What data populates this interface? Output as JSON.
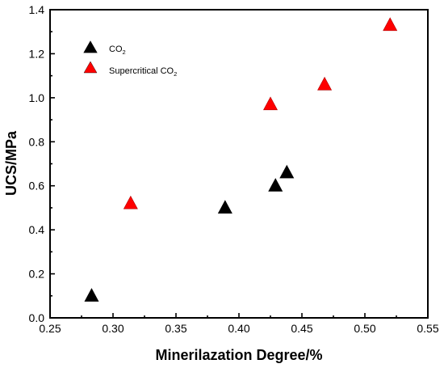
{
  "chart_data": {
    "type": "scatter",
    "xlabel": "Minerilazation Degree/%",
    "ylabel": "UCS/MPa",
    "xlim": [
      0.25,
      0.55
    ],
    "ylim": [
      0.0,
      1.4
    ],
    "x_ticks": [
      "0.25",
      "0.30",
      "0.35",
      "0.40",
      "0.45",
      "0.50",
      "0.55"
    ],
    "y_ticks": [
      "0.0",
      "0.2",
      "0.4",
      "0.6",
      "0.8",
      "1.0",
      "1.2",
      "1.4"
    ],
    "legend_position": "top-left",
    "series": [
      {
        "name": "CO",
        "name_subscript": "2",
        "marker": "triangle",
        "color": "#000000",
        "points": [
          {
            "x": 0.283,
            "y": 0.1
          },
          {
            "x": 0.389,
            "y": 0.5
          },
          {
            "x": 0.429,
            "y": 0.6
          },
          {
            "x": 0.438,
            "y": 0.66
          }
        ]
      },
      {
        "name": "Supercritical CO",
        "name_subscript": "2",
        "marker": "triangle",
        "color": "#ff0000",
        "points": [
          {
            "x": 0.314,
            "y": 0.52
          },
          {
            "x": 0.425,
            "y": 0.97
          },
          {
            "x": 0.468,
            "y": 1.06
          },
          {
            "x": 0.52,
            "y": 1.33
          }
        ]
      }
    ]
  }
}
